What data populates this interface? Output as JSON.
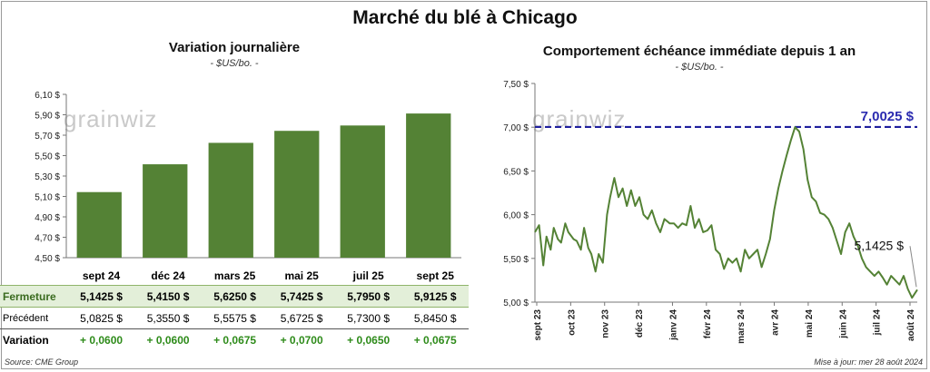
{
  "title": "Marché du blé à Chicago",
  "left_chart": {
    "title": "Variation journalière",
    "unit": "- $US/bo. -",
    "watermark": "grainwiz"
  },
  "right_chart": {
    "title": "Comportement  échéance immédiate depuis 1 an",
    "unit": "- $US/bo. -",
    "watermark": "grainwiz",
    "annotation_high": "7,0025 $",
    "annotation_last": "5,1425 $"
  },
  "table": {
    "columns": [
      "sept 24",
      "déc 24",
      "mars 25",
      "mai 25",
      "juil 25",
      "sept 25"
    ],
    "rows": [
      {
        "label": "Fermeture",
        "values": [
          "5,1425  $",
          "5,4150  $",
          "5,6250  $",
          "5,7425  $",
          "5,7950  $",
          "5,9125  $"
        ]
      },
      {
        "label": "Précédent",
        "values": [
          "5,0825  $",
          "5,3550  $",
          "5,5575  $",
          "5,6725  $",
          "5,7300  $",
          "5,8450  $"
        ]
      },
      {
        "label": "Variation",
        "values": [
          "+ 0,0600",
          "+ 0,0600",
          "+ 0,0675",
          "+ 0,0700",
          "+ 0,0650",
          "+ 0,0675"
        ]
      }
    ]
  },
  "footer": {
    "source": "Source: CME Group",
    "updated": "Mise à jour: mer 28 août 2024"
  },
  "colors": {
    "bar": "#548235",
    "line": "#548235",
    "ref_line": "#1f1f9e",
    "annotation": "#2b2bb0"
  },
  "chart_data": [
    {
      "type": "bar",
      "title": "Variation journalière",
      "ylabel": "$US/bo.",
      "categories": [
        "sept 24",
        "déc 24",
        "mars 25",
        "mai 25",
        "juil 25",
        "sept 25"
      ],
      "values": [
        5.1425,
        5.415,
        5.625,
        5.7425,
        5.795,
        5.9125
      ],
      "ylim": [
        4.5,
        6.1
      ],
      "yticks": [
        4.5,
        4.7,
        4.9,
        5.1,
        5.3,
        5.5,
        5.7,
        5.9,
        6.1
      ],
      "ytick_labels": [
        "4,50 $",
        "4,70 $",
        "4,90 $",
        "5,10 $",
        "5,30 $",
        "5,50 $",
        "5,70 $",
        "5,90 $",
        "6,10 $"
      ],
      "grid": false
    },
    {
      "type": "line",
      "title": "Comportement  échéance immédiate depuis 1 an",
      "ylabel": "$US/bo.",
      "ylim": [
        5.0,
        7.5
      ],
      "yticks": [
        5.0,
        5.5,
        6.0,
        6.5,
        7.0,
        7.5
      ],
      "ytick_labels": [
        "5,00 $",
        "5,50 $",
        "6,00 $",
        "6,50 $",
        "7,00 $",
        "7,50 $"
      ],
      "xtick_labels": [
        "sept 23",
        "oct 23",
        "nov 23",
        "déc 23",
        "janv 24",
        "févr 24",
        "mars 24",
        "avr 24",
        "mai 24",
        "juin 24",
        "juil 24",
        "août 24"
      ],
      "x_range": [
        "2023-08-28",
        "2024-08-28"
      ],
      "reference_line": 7.0025,
      "x": [
        "2023-08-28",
        "2023-09-01",
        "2023-09-05",
        "2023-09-08",
        "2023-09-12",
        "2023-09-15",
        "2023-09-19",
        "2023-09-22",
        "2023-09-26",
        "2023-09-29",
        "2023-10-04",
        "2023-10-07",
        "2023-10-11",
        "2023-10-14",
        "2023-10-18",
        "2023-10-21",
        "2023-10-25",
        "2023-10-28",
        "2023-11-01",
        "2023-11-05",
        "2023-11-08",
        "2023-11-12",
        "2023-11-16",
        "2023-11-20",
        "2023-11-24",
        "2023-11-28",
        "2023-12-02",
        "2023-12-06",
        "2023-12-10",
        "2023-12-14",
        "2023-12-18",
        "2023-12-22",
        "2023-12-26",
        "2023-12-30",
        "2024-01-04",
        "2024-01-08",
        "2024-01-12",
        "2024-01-16",
        "2024-01-20",
        "2024-01-24",
        "2024-01-28",
        "2024-02-01",
        "2024-02-05",
        "2024-02-09",
        "2024-02-13",
        "2024-02-17",
        "2024-02-21",
        "2024-02-25",
        "2024-02-29",
        "2024-03-04",
        "2024-03-08",
        "2024-03-12",
        "2024-03-16",
        "2024-03-20",
        "2024-03-24",
        "2024-03-28",
        "2024-04-01",
        "2024-04-05",
        "2024-04-09",
        "2024-04-13",
        "2024-04-17",
        "2024-04-21",
        "2024-04-25",
        "2024-04-29",
        "2024-05-03",
        "2024-05-07",
        "2024-05-11",
        "2024-05-15",
        "2024-05-19",
        "2024-05-23",
        "2024-05-27",
        "2024-05-31",
        "2024-06-04",
        "2024-06-08",
        "2024-06-12",
        "2024-06-16",
        "2024-06-20",
        "2024-06-24",
        "2024-06-28",
        "2024-07-02",
        "2024-07-06",
        "2024-07-10",
        "2024-07-14",
        "2024-07-18",
        "2024-07-22",
        "2024-07-26",
        "2024-07-30",
        "2024-08-03",
        "2024-08-07",
        "2024-08-11",
        "2024-08-15",
        "2024-08-19",
        "2024-08-23",
        "2024-08-28"
      ],
      "series": [
        {
          "values": [
            5.8,
            5.88,
            5.42,
            5.75,
            5.6,
            5.85,
            5.72,
            5.68,
            5.9,
            5.8,
            5.72,
            5.7,
            5.6,
            5.85,
            5.62,
            5.55,
            5.35,
            5.55,
            5.45,
            6.0,
            6.2,
            6.42,
            6.2,
            6.3,
            6.1,
            6.28,
            6.1,
            6.2,
            6.0,
            5.95,
            6.05,
            5.9,
            5.8,
            5.95,
            5.9,
            5.9,
            5.85,
            5.9,
            5.88,
            6.1,
            5.85,
            5.95,
            5.8,
            5.82,
            5.88,
            5.6,
            5.55,
            5.38,
            5.5,
            5.45,
            5.5,
            5.35,
            5.6,
            5.5,
            5.55,
            5.6,
            5.4,
            5.55,
            5.72,
            6.05,
            6.3,
            6.5,
            6.68,
            6.85,
            7.0,
            6.95,
            6.75,
            6.4,
            6.2,
            6.15,
            6.02,
            6.0,
            5.95,
            5.85,
            5.7,
            5.55,
            5.8,
            5.9,
            5.75,
            5.65,
            5.5,
            5.4,
            5.35,
            5.3,
            5.35,
            5.28,
            5.2,
            5.3,
            5.25,
            5.2,
            5.3,
            5.15,
            5.05,
            5.1425
          ]
        }
      ]
    }
  ]
}
